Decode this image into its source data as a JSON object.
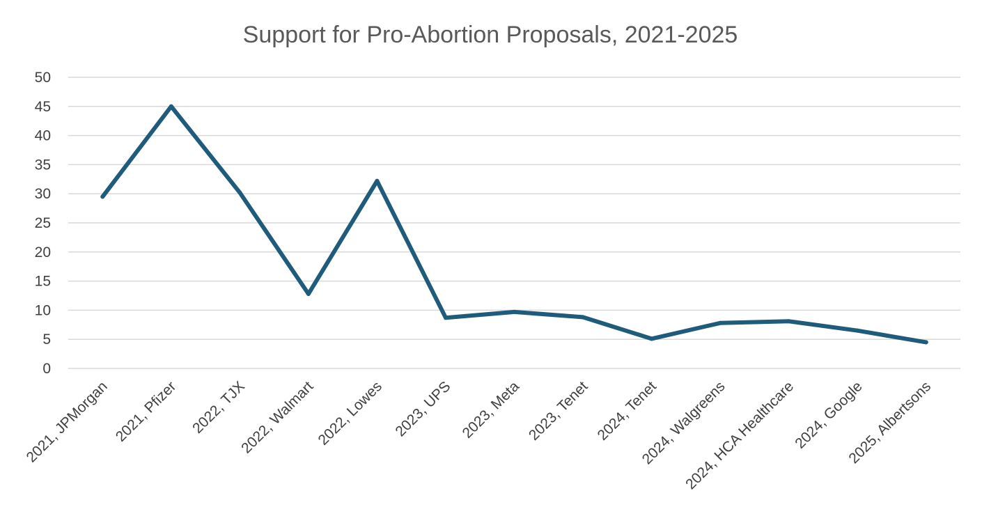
{
  "chart_data": {
    "type": "line",
    "title": "Support for Pro-Abortion Proposals, 2021-2025",
    "xlabel": "",
    "ylabel": "",
    "ylim": [
      0,
      50
    ],
    "yticks": [
      "0",
      "5",
      "10",
      "15",
      "20",
      "25",
      "30",
      "35",
      "40",
      "45",
      "50"
    ],
    "grid": true,
    "legend": "none",
    "categories": [
      "2021, JPMorgan",
      "2021, Pfizer",
      "2022, TJX",
      "2022, Walmart",
      "2022, Lowes",
      "2023, UPS",
      "2023, Meta",
      "2023, Tenet",
      "2024, Tenet",
      "2024, Walgreens",
      "2024, HCA Healthcare",
      "2024, Google",
      "2025, Albertsons"
    ],
    "series": [
      {
        "name": "Support",
        "color": "#1f5c7c",
        "values": [
          29.5,
          45,
          30.2,
          12.8,
          32.2,
          8.7,
          9.7,
          8.8,
          5.1,
          7.8,
          8.1,
          6.5,
          4.5
        ]
      }
    ]
  }
}
